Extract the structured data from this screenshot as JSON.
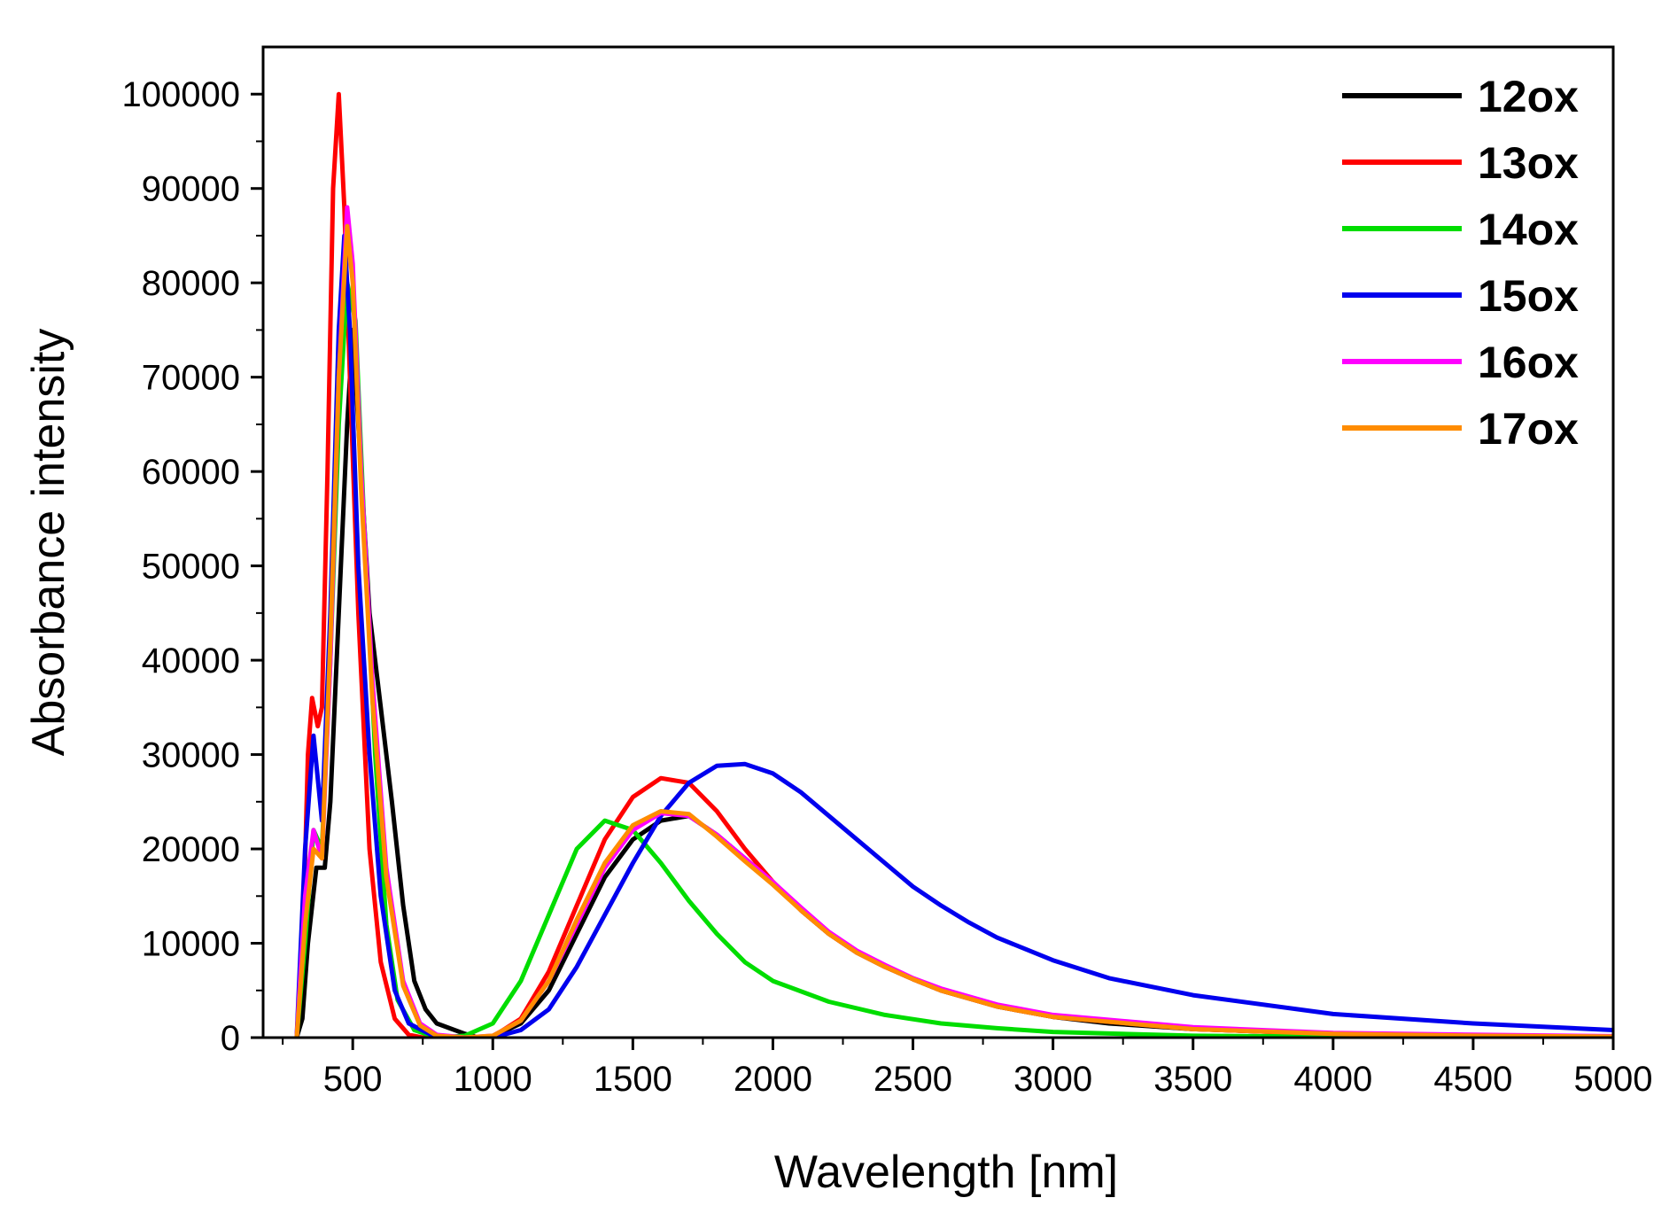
{
  "chart_data": {
    "type": "line",
    "title": "",
    "xlabel": "Wavelength [nm]",
    "ylabel": "Absorbance intensity",
    "xlim": [
      180,
      5000
    ],
    "ylim": [
      0,
      105000
    ],
    "x_ticks": [
      500,
      1000,
      1500,
      2000,
      2500,
      3000,
      3500,
      4000,
      4500,
      5000
    ],
    "y_ticks": [
      0,
      10000,
      20000,
      30000,
      40000,
      50000,
      60000,
      70000,
      80000,
      90000,
      100000
    ],
    "grid": false,
    "legend_position": "top-right",
    "series": [
      {
        "name": "12ox",
        "color": "#000000",
        "points": [
          [
            300,
            0
          ],
          [
            320,
            2000
          ],
          [
            340,
            10000
          ],
          [
            370,
            18000
          ],
          [
            400,
            18000
          ],
          [
            420,
            25000
          ],
          [
            450,
            45000
          ],
          [
            480,
            65000
          ],
          [
            500,
            75000
          ],
          [
            520,
            65000
          ],
          [
            560,
            45000
          ],
          [
            600,
            35000
          ],
          [
            640,
            25000
          ],
          [
            680,
            14000
          ],
          [
            720,
            6000
          ],
          [
            760,
            3000
          ],
          [
            800,
            1500
          ],
          [
            900,
            400
          ],
          [
            950,
            0
          ],
          [
            1000,
            100
          ],
          [
            1100,
            1500
          ],
          [
            1200,
            5000
          ],
          [
            1300,
            11000
          ],
          [
            1400,
            17000
          ],
          [
            1500,
            21000
          ],
          [
            1600,
            23000
          ],
          [
            1700,
            23500
          ],
          [
            1800,
            21500
          ],
          [
            1900,
            19000
          ],
          [
            2000,
            16500
          ],
          [
            2100,
            13500
          ],
          [
            2200,
            11000
          ],
          [
            2300,
            9000
          ],
          [
            2400,
            7500
          ],
          [
            2500,
            6200
          ],
          [
            2600,
            5000
          ],
          [
            2800,
            3300
          ],
          [
            3000,
            2200
          ],
          [
            3200,
            1500
          ],
          [
            3500,
            900
          ],
          [
            4000,
            400
          ],
          [
            4500,
            200
          ],
          [
            5000,
            100
          ]
        ]
      },
      {
        "name": "13ox",
        "color": "#ff0000",
        "points": [
          [
            300,
            0
          ],
          [
            320,
            8000
          ],
          [
            340,
            30000
          ],
          [
            355,
            36000
          ],
          [
            375,
            33000
          ],
          [
            390,
            35000
          ],
          [
            410,
            60000
          ],
          [
            430,
            90000
          ],
          [
            450,
            100000
          ],
          [
            470,
            88000
          ],
          [
            490,
            70000
          ],
          [
            520,
            45000
          ],
          [
            560,
            20000
          ],
          [
            600,
            8000
          ],
          [
            650,
            2000
          ],
          [
            700,
            300
          ],
          [
            750,
            0
          ],
          [
            900,
            0
          ],
          [
            1000,
            100
          ],
          [
            1100,
            2000
          ],
          [
            1200,
            7000
          ],
          [
            1300,
            14000
          ],
          [
            1400,
            21000
          ],
          [
            1500,
            25500
          ],
          [
            1600,
            27500
          ],
          [
            1700,
            27000
          ],
          [
            1800,
            24000
          ],
          [
            1900,
            20000
          ],
          [
            2000,
            16500
          ],
          [
            2100,
            13500
          ],
          [
            2200,
            11000
          ],
          [
            2300,
            9000
          ],
          [
            2400,
            7500
          ],
          [
            2500,
            6200
          ],
          [
            2600,
            5000
          ],
          [
            2800,
            3300
          ],
          [
            3000,
            2200
          ],
          [
            3500,
            900
          ],
          [
            4000,
            400
          ],
          [
            4500,
            200
          ],
          [
            5000,
            100
          ]
        ]
      },
      {
        "name": "14ox",
        "color": "#00dd00",
        "points": [
          [
            300,
            0
          ],
          [
            330,
            10000
          ],
          [
            360,
            22000
          ],
          [
            390,
            20000
          ],
          [
            420,
            40000
          ],
          [
            450,
            65000
          ],
          [
            480,
            80000
          ],
          [
            510,
            76000
          ],
          [
            540,
            55000
          ],
          [
            580,
            30000
          ],
          [
            620,
            12000
          ],
          [
            660,
            4000
          ],
          [
            720,
            800
          ],
          [
            800,
            0
          ],
          [
            900,
            200
          ],
          [
            1000,
            1500
          ],
          [
            1100,
            6000
          ],
          [
            1200,
            13000
          ],
          [
            1300,
            20000
          ],
          [
            1400,
            23000
          ],
          [
            1500,
            22000
          ],
          [
            1600,
            18500
          ],
          [
            1700,
            14500
          ],
          [
            1800,
            11000
          ],
          [
            1900,
            8000
          ],
          [
            2000,
            6000
          ],
          [
            2200,
            3800
          ],
          [
            2400,
            2400
          ],
          [
            2600,
            1500
          ],
          [
            2800,
            1000
          ],
          [
            3000,
            600
          ],
          [
            3500,
            200
          ],
          [
            4000,
            100
          ],
          [
            5000,
            0
          ]
        ]
      },
      {
        "name": "15ox",
        "color": "#0000ee",
        "points": [
          [
            300,
            0
          ],
          [
            330,
            20000
          ],
          [
            360,
            32000
          ],
          [
            390,
            23000
          ],
          [
            420,
            45000
          ],
          [
            450,
            75000
          ],
          [
            470,
            85000
          ],
          [
            490,
            75000
          ],
          [
            520,
            50000
          ],
          [
            560,
            30000
          ],
          [
            600,
            15000
          ],
          [
            650,
            5000
          ],
          [
            700,
            1500
          ],
          [
            780,
            300
          ],
          [
            900,
            0
          ],
          [
            1000,
            0
          ],
          [
            1100,
            800
          ],
          [
            1200,
            3000
          ],
          [
            1300,
            7500
          ],
          [
            1400,
            13000
          ],
          [
            1500,
            18500
          ],
          [
            1600,
            23500
          ],
          [
            1700,
            27000
          ],
          [
            1800,
            28800
          ],
          [
            1900,
            29000
          ],
          [
            2000,
            28000
          ],
          [
            2100,
            26000
          ],
          [
            2200,
            23500
          ],
          [
            2300,
            21000
          ],
          [
            2400,
            18500
          ],
          [
            2500,
            16000
          ],
          [
            2600,
            14000
          ],
          [
            2700,
            12200
          ],
          [
            2800,
            10600
          ],
          [
            3000,
            8200
          ],
          [
            3200,
            6300
          ],
          [
            3500,
            4500
          ],
          [
            4000,
            2500
          ],
          [
            4500,
            1500
          ],
          [
            5000,
            800
          ]
        ]
      },
      {
        "name": "16ox",
        "color": "#ff00ff",
        "points": [
          [
            300,
            0
          ],
          [
            330,
            15000
          ],
          [
            360,
            22000
          ],
          [
            390,
            19000
          ],
          [
            420,
            40000
          ],
          [
            450,
            70000
          ],
          [
            480,
            88000
          ],
          [
            500,
            82000
          ],
          [
            530,
            60000
          ],
          [
            570,
            38000
          ],
          [
            620,
            18000
          ],
          [
            680,
            6000
          ],
          [
            740,
            1500
          ],
          [
            800,
            300
          ],
          [
            900,
            0
          ],
          [
            1000,
            200
          ],
          [
            1100,
            1800
          ],
          [
            1200,
            6000
          ],
          [
            1300,
            12000
          ],
          [
            1400,
            18000
          ],
          [
            1500,
            22000
          ],
          [
            1600,
            23800
          ],
          [
            1700,
            23500
          ],
          [
            1800,
            21500
          ],
          [
            1900,
            19000
          ],
          [
            2000,
            16500
          ],
          [
            2100,
            13800
          ],
          [
            2200,
            11200
          ],
          [
            2300,
            9200
          ],
          [
            2400,
            7700
          ],
          [
            2500,
            6300
          ],
          [
            2600,
            5200
          ],
          [
            2800,
            3500
          ],
          [
            3000,
            2400
          ],
          [
            3500,
            1100
          ],
          [
            4000,
            500
          ],
          [
            4500,
            300
          ],
          [
            5000,
            150
          ]
        ]
      },
      {
        "name": "17ox",
        "color": "#ff8c00",
        "points": [
          [
            300,
            0
          ],
          [
            330,
            12000
          ],
          [
            360,
            20000
          ],
          [
            390,
            19000
          ],
          [
            420,
            42000
          ],
          [
            450,
            70000
          ],
          [
            480,
            86000
          ],
          [
            500,
            80000
          ],
          [
            530,
            58000
          ],
          [
            570,
            36000
          ],
          [
            620,
            17000
          ],
          [
            680,
            5500
          ],
          [
            740,
            1300
          ],
          [
            800,
            200
          ],
          [
            900,
            0
          ],
          [
            1000,
            200
          ],
          [
            1100,
            1800
          ],
          [
            1200,
            6000
          ],
          [
            1300,
            12500
          ],
          [
            1400,
            18500
          ],
          [
            1500,
            22500
          ],
          [
            1600,
            24000
          ],
          [
            1700,
            23700
          ],
          [
            1800,
            21300
          ],
          [
            1900,
            18700
          ],
          [
            2000,
            16200
          ],
          [
            2100,
            13500
          ],
          [
            2200,
            11000
          ],
          [
            2300,
            9000
          ],
          [
            2400,
            7500
          ],
          [
            2500,
            6200
          ],
          [
            2600,
            5000
          ],
          [
            2800,
            3300
          ],
          [
            3000,
            2200
          ],
          [
            3500,
            900
          ],
          [
            4000,
            400
          ],
          [
            4500,
            200
          ],
          [
            5000,
            100
          ]
        ]
      }
    ]
  }
}
